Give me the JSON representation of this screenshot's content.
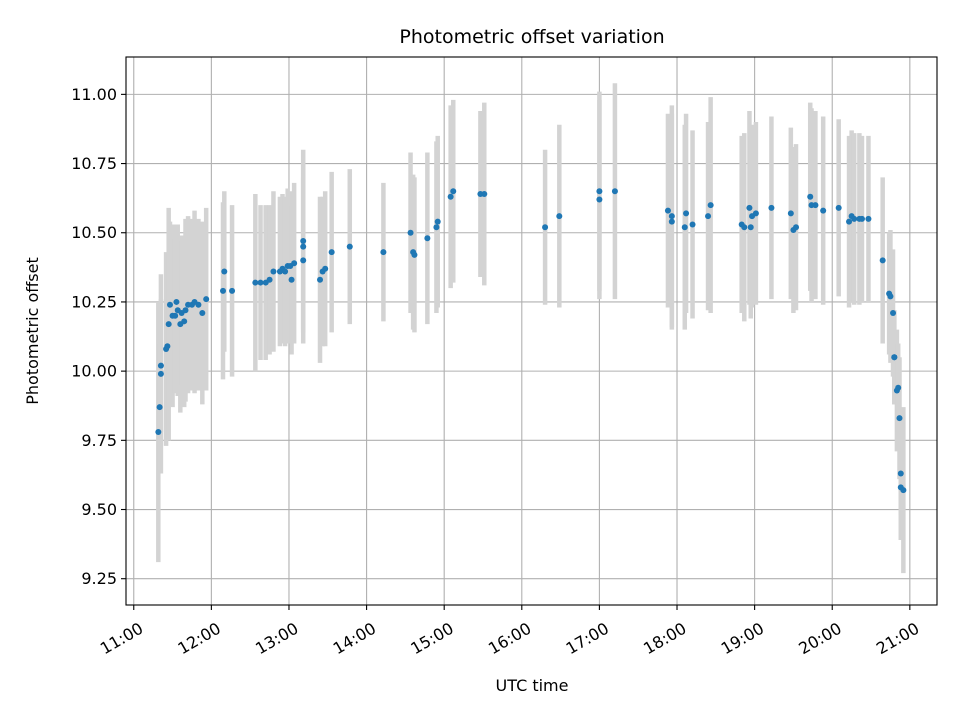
{
  "chart_data": {
    "type": "scatter",
    "title": "Photometric offset variation",
    "xlabel": "UTC time",
    "ylabel": "Photometric offset",
    "x_unit": "hours UTC",
    "xlim": [
      "10:54",
      "21:21"
    ],
    "ylim": [
      9.155,
      11.135
    ],
    "grid": true,
    "x_ticks": [
      "11:00",
      "12:00",
      "13:00",
      "14:00",
      "15:00",
      "16:00",
      "17:00",
      "18:00",
      "19:00",
      "20:00",
      "21:00"
    ],
    "y_ticks": [
      "9.25",
      "9.50",
      "9.75",
      "10.00",
      "10.25",
      "10.50",
      "10.75",
      "11.00"
    ],
    "colors": {
      "marker": "#1f77b4",
      "errorbar": "#d3d3d3",
      "grid": "#b0b0b0"
    },
    "points": [
      {
        "x": "11:19",
        "y": 9.78,
        "e": 0.47
      },
      {
        "x": "11:20",
        "y": 9.87,
        "e": 0.23
      },
      {
        "x": "11:21",
        "y": 9.99,
        "e": 0.36
      },
      {
        "x": "11:21",
        "y": 10.02,
        "e": 0.24
      },
      {
        "x": "11:25",
        "y": 10.08,
        "e": 0.35
      },
      {
        "x": "11:26",
        "y": 10.09,
        "e": 0.32
      },
      {
        "x": "11:27",
        "y": 10.17,
        "e": 0.42
      },
      {
        "x": "11:28",
        "y": 10.24,
        "e": 0.3
      },
      {
        "x": "11:30",
        "y": 10.2,
        "e": 0.33
      },
      {
        "x": "11:32",
        "y": 10.2,
        "e": 0.28
      },
      {
        "x": "11:33",
        "y": 10.25,
        "e": 0.28
      },
      {
        "x": "11:34",
        "y": 10.22,
        "e": 0.31
      },
      {
        "x": "11:36",
        "y": 10.17,
        "e": 0.32
      },
      {
        "x": "11:37",
        "y": 10.21,
        "e": 0.26
      },
      {
        "x": "11:39",
        "y": 10.18,
        "e": 0.31
      },
      {
        "x": "11:40",
        "y": 10.22,
        "e": 0.33
      },
      {
        "x": "11:42",
        "y": 10.24,
        "e": 0.32
      },
      {
        "x": "11:45",
        "y": 10.24,
        "e": 0.31
      },
      {
        "x": "11:47",
        "y": 10.25,
        "e": 0.33
      },
      {
        "x": "11:50",
        "y": 10.24,
        "e": 0.31
      },
      {
        "x": "11:53",
        "y": 10.21,
        "e": 0.33
      },
      {
        "x": "11:56",
        "y": 10.26,
        "e": 0.33
      },
      {
        "x": "12:09",
        "y": 10.29,
        "e": 0.32
      },
      {
        "x": "12:10",
        "y": 10.36,
        "e": 0.29
      },
      {
        "x": "12:16",
        "y": 10.29,
        "e": 0.31
      },
      {
        "x": "12:34",
        "y": 10.32,
        "e": 0.32
      },
      {
        "x": "12:38",
        "y": 10.32,
        "e": 0.28
      },
      {
        "x": "12:42",
        "y": 10.32,
        "e": 0.28
      },
      {
        "x": "12:45",
        "y": 10.33,
        "e": 0.27
      },
      {
        "x": "12:48",
        "y": 10.36,
        "e": 0.29
      },
      {
        "x": "12:53",
        "y": 10.36,
        "e": 0.27
      },
      {
        "x": "12:55",
        "y": 10.37,
        "e": 0.27
      },
      {
        "x": "12:57",
        "y": 10.36,
        "e": 0.27
      },
      {
        "x": "12:59",
        "y": 10.38,
        "e": 0.28
      },
      {
        "x": "13:01",
        "y": 10.38,
        "e": 0.27
      },
      {
        "x": "13:02",
        "y": 10.33,
        "e": 0.27
      },
      {
        "x": "13:04",
        "y": 10.39,
        "e": 0.29
      },
      {
        "x": "13:11",
        "y": 10.45,
        "e": 0.3
      },
      {
        "x": "13:11",
        "y": 10.47,
        "e": 0.33
      },
      {
        "x": "13:11",
        "y": 10.4,
        "e": 0.3
      },
      {
        "x": "13:24",
        "y": 10.33,
        "e": 0.3
      },
      {
        "x": "13:26",
        "y": 10.36,
        "e": 0.27
      },
      {
        "x": "13:28",
        "y": 10.37,
        "e": 0.28
      },
      {
        "x": "13:33",
        "y": 10.43,
        "e": 0.29
      },
      {
        "x": "13:47",
        "y": 10.45,
        "e": 0.28
      },
      {
        "x": "14:13",
        "y": 10.43,
        "e": 0.25
      },
      {
        "x": "14:34",
        "y": 10.5,
        "e": 0.29
      },
      {
        "x": "14:36",
        "y": 10.43,
        "e": 0.28
      },
      {
        "x": "14:37",
        "y": 10.42,
        "e": 0.28
      },
      {
        "x": "14:47",
        "y": 10.48,
        "e": 0.31
      },
      {
        "x": "14:54",
        "y": 10.52,
        "e": 0.31
      },
      {
        "x": "14:55",
        "y": 10.54,
        "e": 0.31
      },
      {
        "x": "15:05",
        "y": 10.63,
        "e": 0.33
      },
      {
        "x": "15:07",
        "y": 10.65,
        "e": 0.33
      },
      {
        "x": "15:28",
        "y": 10.64,
        "e": 0.3
      },
      {
        "x": "15:31",
        "y": 10.64,
        "e": 0.33
      },
      {
        "x": "16:18",
        "y": 10.52,
        "e": 0.28
      },
      {
        "x": "16:29",
        "y": 10.56,
        "e": 0.33
      },
      {
        "x": "17:00",
        "y": 10.65,
        "e": 0.36
      },
      {
        "x": "17:00",
        "y": 10.62,
        "e": 0.36
      },
      {
        "x": "17:12",
        "y": 10.65,
        "e": 0.39
      },
      {
        "x": "17:53",
        "y": 10.58,
        "e": 0.35
      },
      {
        "x": "17:56",
        "y": 10.56,
        "e": 0.4
      },
      {
        "x": "17:56",
        "y": 10.54,
        "e": 0.39
      },
      {
        "x": "18:06",
        "y": 10.52,
        "e": 0.37
      },
      {
        "x": "18:07",
        "y": 10.57,
        "e": 0.36
      },
      {
        "x": "18:12",
        "y": 10.53,
        "e": 0.34
      },
      {
        "x": "18:24",
        "y": 10.56,
        "e": 0.34
      },
      {
        "x": "18:26",
        "y": 10.6,
        "e": 0.39
      },
      {
        "x": "18:50",
        "y": 10.53,
        "e": 0.32
      },
      {
        "x": "18:52",
        "y": 10.52,
        "e": 0.34
      },
      {
        "x": "18:56",
        "y": 10.59,
        "e": 0.35
      },
      {
        "x": "18:57",
        "y": 10.52,
        "e": 0.33
      },
      {
        "x": "18:58",
        "y": 10.56,
        "e": 0.33
      },
      {
        "x": "19:01",
        "y": 10.57,
        "e": 0.33
      },
      {
        "x": "19:13",
        "y": 10.59,
        "e": 0.33
      },
      {
        "x": "19:28",
        "y": 10.57,
        "e": 0.31
      },
      {
        "x": "19:30",
        "y": 10.51,
        "e": 0.3
      },
      {
        "x": "19:32",
        "y": 10.52,
        "e": 0.3
      },
      {
        "x": "19:43",
        "y": 10.63,
        "e": 0.34
      },
      {
        "x": "19:44",
        "y": 10.6,
        "e": 0.35
      },
      {
        "x": "19:47",
        "y": 10.6,
        "e": 0.34
      },
      {
        "x": "19:53",
        "y": 10.58,
        "e": 0.34
      },
      {
        "x": "20:05",
        "y": 10.59,
        "e": 0.32
      },
      {
        "x": "20:13",
        "y": 10.54,
        "e": 0.31
      },
      {
        "x": "20:15",
        "y": 10.56,
        "e": 0.31
      },
      {
        "x": "20:17",
        "y": 10.55,
        "e": 0.31
      },
      {
        "x": "20:21",
        "y": 10.55,
        "e": 0.31
      },
      {
        "x": "20:23",
        "y": 10.55,
        "e": 0.3
      },
      {
        "x": "20:28",
        "y": 10.55,
        "e": 0.3
      },
      {
        "x": "20:39",
        "y": 10.4,
        "e": 0.3
      },
      {
        "x": "20:44",
        "y": 10.28,
        "e": 0.22
      },
      {
        "x": "20:45",
        "y": 10.27,
        "e": 0.24
      },
      {
        "x": "20:47",
        "y": 10.21,
        "e": 0.23
      },
      {
        "x": "20:48",
        "y": 10.05,
        "e": 0.17
      },
      {
        "x": "20:48",
        "y": 10.05,
        "e": 0.17
      },
      {
        "x": "20:50",
        "y": 9.93,
        "e": 0.22
      },
      {
        "x": "20:51",
        "y": 9.94,
        "e": 0.16
      },
      {
        "x": "20:52",
        "y": 9.83,
        "e": 0.22
      },
      {
        "x": "20:53",
        "y": 9.63,
        "e": 0.15
      },
      {
        "x": "20:53",
        "y": 9.58,
        "e": 0.19
      },
      {
        "x": "20:55",
        "y": 9.57,
        "e": 0.3
      }
    ]
  }
}
